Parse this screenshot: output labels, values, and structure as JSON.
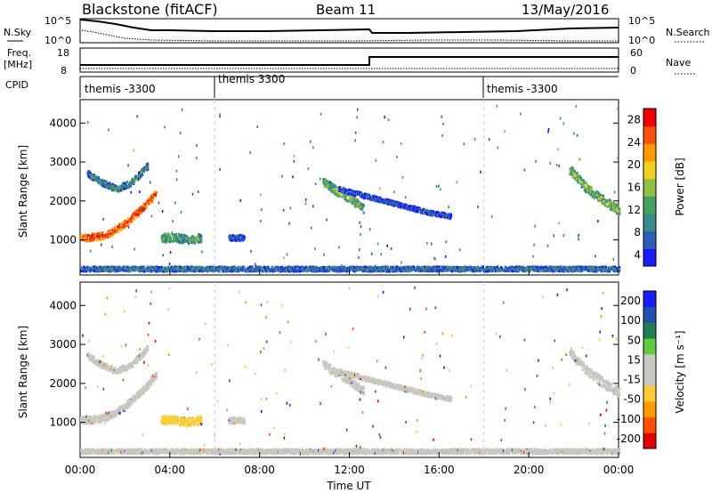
{
  "header": {
    "station": "Blackstone (fitACF)",
    "beam": "Beam 11",
    "date": "13/May/2016"
  },
  "top_panels": {
    "nsky_label": "N.Sky",
    "nsky_tick_high": "10^5",
    "nsky_tick_low": "10^0",
    "nsearch_label": "N.Search",
    "nsearch_tick_high": "10^5",
    "nsearch_tick_low": "10^0",
    "freq_label": "Freq.",
    "freq_unit": "[MHz]",
    "freq_tick_high": "18",
    "freq_tick_low": "8",
    "nave_label": "Nave",
    "nave_tick_high": "60",
    "nave_tick_low": "0",
    "cpid_label": "CPID",
    "cpid_segments": [
      {
        "label": "themis -3300",
        "start_hour": 0
      },
      {
        "label": "themis 3300",
        "start_hour": 6
      },
      {
        "label": "themis -3300",
        "start_hour": 18
      }
    ]
  },
  "chart_data": [
    {
      "type": "heatmap",
      "panel": "power",
      "ylabel": "Slant Range [km]",
      "xlabel": "",
      "xlim_hours": [
        0,
        24
      ],
      "ylim_km": [
        100,
        4600
      ],
      "yticks": [
        "1000",
        "2000",
        "3000",
        "4000"
      ],
      "xticks": [],
      "colorbar": {
        "label": "Power [dB]",
        "ticks": [
          "28",
          "24",
          "20",
          "16",
          "12",
          "8",
          "4"
        ],
        "range": [
          0,
          30
        ],
        "colors": [
          "#1a1aff",
          "#2a5fb8",
          "#3a8a8a",
          "#45a060",
          "#90c040",
          "#f0d020",
          "#ff9900",
          "#ff5010",
          "#ee0000"
        ]
      },
      "scatter_bands": [
        {
          "t": [
            0.0,
            0.5,
            1.0,
            1.5,
            2.0,
            2.5,
            3.0,
            3.4
          ],
          "km": [
            1050,
            1060,
            1100,
            1220,
            1420,
            1680,
            1950,
            2250
          ],
          "width_km": 180,
          "power": 26
        },
        {
          "t": [
            0.3,
            1.0,
            1.6,
            2.2,
            2.6,
            3.0
          ],
          "km": [
            2700,
            2450,
            2300,
            2450,
            2650,
            2900
          ],
          "width_km": 160,
          "power": 10
        },
        {
          "t": [
            3.6,
            4.2,
            4.8,
            5.4
          ],
          "km": [
            1050,
            1050,
            1000,
            1050
          ],
          "width_km": 220,
          "power": 12
        },
        {
          "t": [
            6.6,
            7.3
          ],
          "km": [
            1050,
            1050
          ],
          "width_km": 150,
          "power": 6
        },
        {
          "t": [
            10.8,
            11.4,
            12.0,
            12.6
          ],
          "km": [
            2500,
            2250,
            2050,
            1800
          ],
          "width_km": 220,
          "power": 14
        },
        {
          "t": [
            11.5,
            12.5,
            13.5,
            14.5,
            15.5,
            16.5
          ],
          "km": [
            2300,
            2150,
            2000,
            1850,
            1700,
            1600
          ],
          "width_km": 120,
          "power": 6
        },
        {
          "t": [
            21.8,
            22.5,
            23.2,
            24.0
          ],
          "km": [
            2800,
            2350,
            2050,
            1750
          ],
          "width_km": 240,
          "power": 14
        },
        {
          "t": [
            0.0,
            6.0,
            12.0,
            18.0,
            24.0
          ],
          "km": [
            250,
            250,
            250,
            250,
            250
          ],
          "width_km": 120,
          "power": 8
        }
      ]
    },
    {
      "type": "heatmap",
      "panel": "velocity",
      "ylabel": "Slant Range [km]",
      "xlabel": "Time UT",
      "xlim_hours": [
        0,
        24
      ],
      "ylim_km": [
        100,
        4600
      ],
      "yticks": [
        "1000",
        "2000",
        "3000",
        "4000"
      ],
      "xticks": [
        "00:00",
        "04:00",
        "08:00",
        "12:00",
        "16:00",
        "20:00",
        "00:00"
      ],
      "colorbar": {
        "label": "Velocity [m s⁻¹]",
        "ticks": [
          "200",
          "100",
          "50",
          "15",
          "-15",
          "-50",
          "-100",
          "-200"
        ],
        "range": [
          -250,
          250
        ],
        "colors": [
          "#e00000",
          "#ff5000",
          "#ff9900",
          "#ffcc33",
          "#c8c8c0",
          "#c8c8c0",
          "#60cc40",
          "#208050",
          "#2050b0",
          "#1a1aff"
        ]
      },
      "scatter_bands": [
        {
          "t": [
            0.0,
            0.5,
            1.0,
            1.5,
            2.0,
            2.5,
            3.0,
            3.4
          ],
          "km": [
            1050,
            1060,
            1100,
            1220,
            1420,
            1680,
            1950,
            2250
          ],
          "width_km": 180,
          "velocity": 0
        },
        {
          "t": [
            0.3,
            1.0,
            1.6,
            2.2,
            2.6,
            3.0
          ],
          "km": [
            2700,
            2450,
            2300,
            2450,
            2650,
            2900
          ],
          "width_km": 160,
          "velocity": 0
        },
        {
          "t": [
            3.6,
            4.2,
            4.8,
            5.4
          ],
          "km": [
            1050,
            1050,
            1000,
            1050
          ],
          "width_km": 220,
          "velocity": -60
        },
        {
          "t": [
            6.6,
            7.3
          ],
          "km": [
            1050,
            1050
          ],
          "width_km": 150,
          "velocity": -30
        },
        {
          "t": [
            10.8,
            11.4,
            12.0,
            12.6
          ],
          "km": [
            2500,
            2250,
            2050,
            1800
          ],
          "width_km": 220,
          "velocity": 0
        },
        {
          "t": [
            11.5,
            12.5,
            13.5,
            14.5,
            15.5,
            16.5
          ],
          "km": [
            2300,
            2150,
            2000,
            1850,
            1700,
            1600
          ],
          "width_km": 120,
          "velocity": 0
        },
        {
          "t": [
            21.8,
            22.5,
            23.2,
            24.0
          ],
          "km": [
            2800,
            2350,
            2050,
            1750
          ],
          "width_km": 240,
          "velocity": 0
        },
        {
          "t": [
            0.0,
            6.0,
            12.0,
            18.0,
            24.0
          ],
          "km": [
            250,
            250,
            250,
            250,
            250
          ],
          "width_km": 120,
          "velocity": -30
        }
      ]
    }
  ]
}
